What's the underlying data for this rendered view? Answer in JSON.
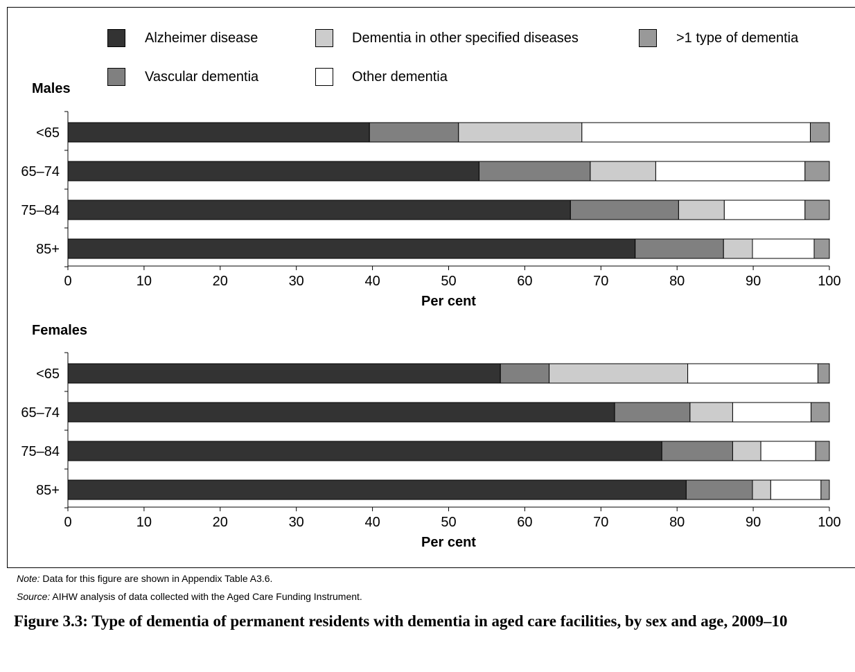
{
  "legend": [
    {
      "label": "Alzheimer disease",
      "color": "#333333"
    },
    {
      "label": "Vascular dementia",
      "color": "#808080"
    },
    {
      "label": "Dementia in other specified diseases",
      "color": "#cccccc"
    },
    {
      "label": "Other dementia",
      "color": "#ffffff"
    },
    {
      "label": ">1 type of dementia",
      "color": "#999999"
    }
  ],
  "notes": {
    "note_label": "Note:",
    "note_text": " Data for this figure are shown in Appendix Table A3.6.",
    "source_label": "Source:",
    "source_text": " AIHW analysis of data collected with the Aged Care Funding Instrument."
  },
  "caption": "Figure 3.3: Type of dementia of permanent residents with dementia in aged care facilities, by sex and age, 2009–10",
  "chart_data": [
    {
      "type": "bar",
      "orientation": "horizontal",
      "stacked": true,
      "title": "Males",
      "xlabel": "Per cent",
      "xlim": [
        0,
        100
      ],
      "xticks": [
        0,
        10,
        20,
        30,
        40,
        50,
        60,
        70,
        80,
        90,
        100
      ],
      "categories": [
        "<65",
        "65–74",
        "75–84",
        "85+"
      ],
      "series": [
        {
          "name": "Alzheimer disease",
          "values": [
            39.6,
            54.0,
            66.0,
            74.5
          ]
        },
        {
          "name": "Vascular dementia",
          "values": [
            11.7,
            14.6,
            14.2,
            11.6
          ]
        },
        {
          "name": "Dementia in other specified diseases",
          "values": [
            16.2,
            8.6,
            6.0,
            3.8
          ]
        },
        {
          "name": "Other dementia",
          "values": [
            30.0,
            19.6,
            10.6,
            8.1
          ]
        },
        {
          "name": ">1 type of dementia",
          "values": [
            2.5,
            3.2,
            3.2,
            2.0
          ]
        }
      ]
    },
    {
      "type": "bar",
      "orientation": "horizontal",
      "stacked": true,
      "title": "Females",
      "xlabel": "Per cent",
      "xlim": [
        0,
        100
      ],
      "xticks": [
        0,
        10,
        20,
        30,
        40,
        50,
        60,
        70,
        80,
        90,
        100
      ],
      "categories": [
        "<65",
        "65–74",
        "75–84",
        "85+"
      ],
      "series": [
        {
          "name": "Alzheimer disease",
          "values": [
            56.8,
            71.8,
            78.0,
            81.2
          ]
        },
        {
          "name": "Vascular dementia",
          "values": [
            6.4,
            9.9,
            9.3,
            8.7
          ]
        },
        {
          "name": "Dementia in other specified diseases",
          "values": [
            18.2,
            5.6,
            3.7,
            2.4
          ]
        },
        {
          "name": "Other dementia",
          "values": [
            17.1,
            10.3,
            7.2,
            6.6
          ]
        },
        {
          "name": ">1 type of dementia",
          "values": [
            1.5,
            2.4,
            1.8,
            1.1
          ]
        }
      ]
    }
  ]
}
